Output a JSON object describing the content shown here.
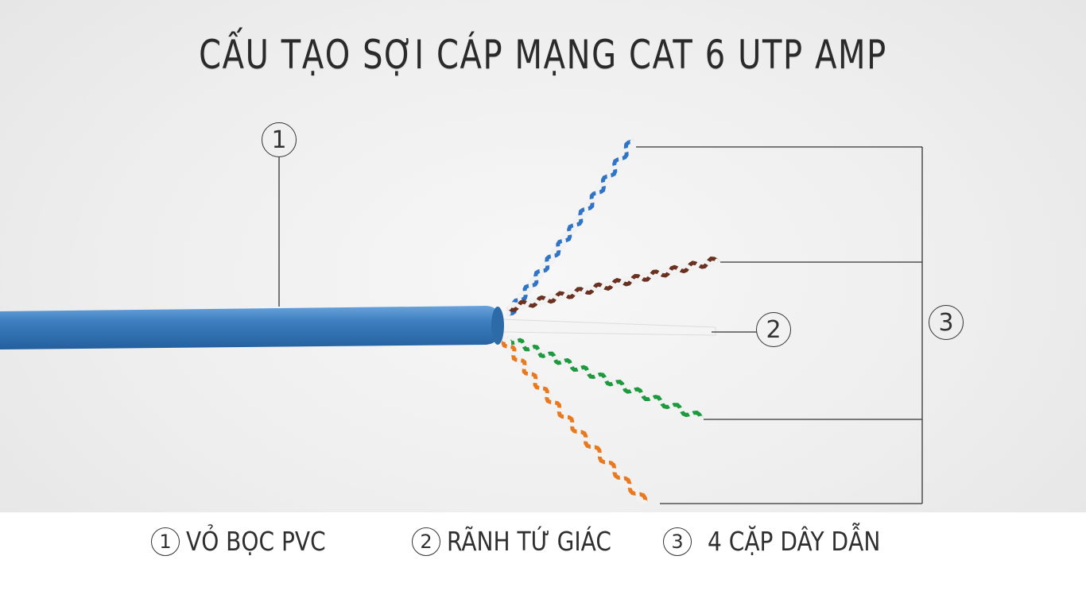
{
  "title": "CẤU TẠO SỢI CÁP MẠNG CAT 6 UTP AMP",
  "markers": {
    "m1": "1",
    "m2": "2",
    "m3": "3"
  },
  "legend": [
    {
      "num": "1",
      "text": "VỎ BỌC PVC"
    },
    {
      "num": "2",
      "text": "RÃNH TỨ GIÁC"
    },
    {
      "num": "3",
      "text": "4 CẶP DÂY DẪN"
    }
  ],
  "colors": {
    "jacket": "#3d7fc0",
    "pair_blue": "#2f74c6",
    "pair_brown": "#6b3120",
    "pair_green": "#1d9a3e",
    "pair_orange": "#e8791e",
    "leader_line": "#333333"
  }
}
